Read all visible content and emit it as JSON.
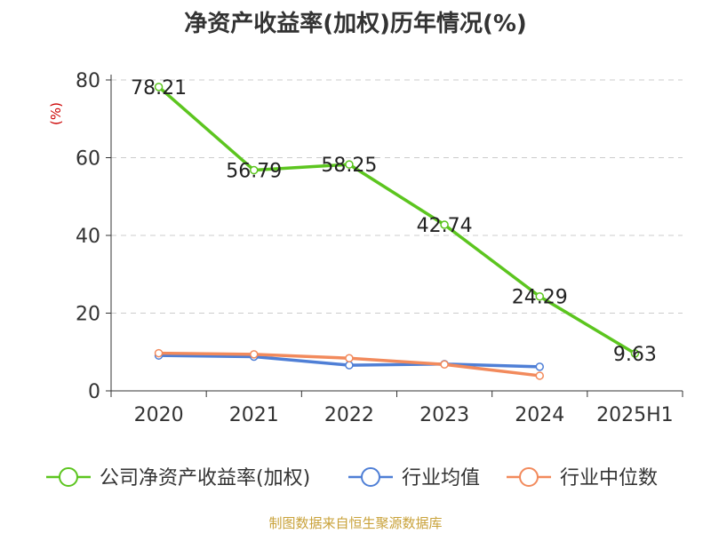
{
  "chart_data": {
    "type": "line",
    "title": "净资产收益率(加权)历年情况(%)",
    "ylabel": "(%)",
    "xlabel": "",
    "categories": [
      "2020",
      "2021",
      "2022",
      "2023",
      "2024",
      "2025H1"
    ],
    "ylim": [
      0,
      80
    ],
    "yticks": [
      0,
      20,
      40,
      60,
      80
    ],
    "grid": true,
    "legend_position": "bottom",
    "series": [
      {
        "name": "公司净资产收益率(加权)",
        "color": "#5cc51f",
        "values": [
          78.21,
          56.79,
          58.25,
          42.74,
          24.29,
          9.63
        ],
        "labels": [
          "78.21",
          "56.79",
          "58.25",
          "42.74",
          "24.29",
          "9.63"
        ]
      },
      {
        "name": "行业均值",
        "color": "#4f7fd6",
        "values": [
          9.1,
          8.8,
          6.6,
          6.9,
          6.2,
          null
        ]
      },
      {
        "name": "行业中位数",
        "color": "#f28a5c",
        "values": [
          9.7,
          9.4,
          8.4,
          6.8,
          3.9,
          null
        ]
      }
    ]
  },
  "footer": {
    "source": "制图数据来自恒生聚源数据库"
  }
}
